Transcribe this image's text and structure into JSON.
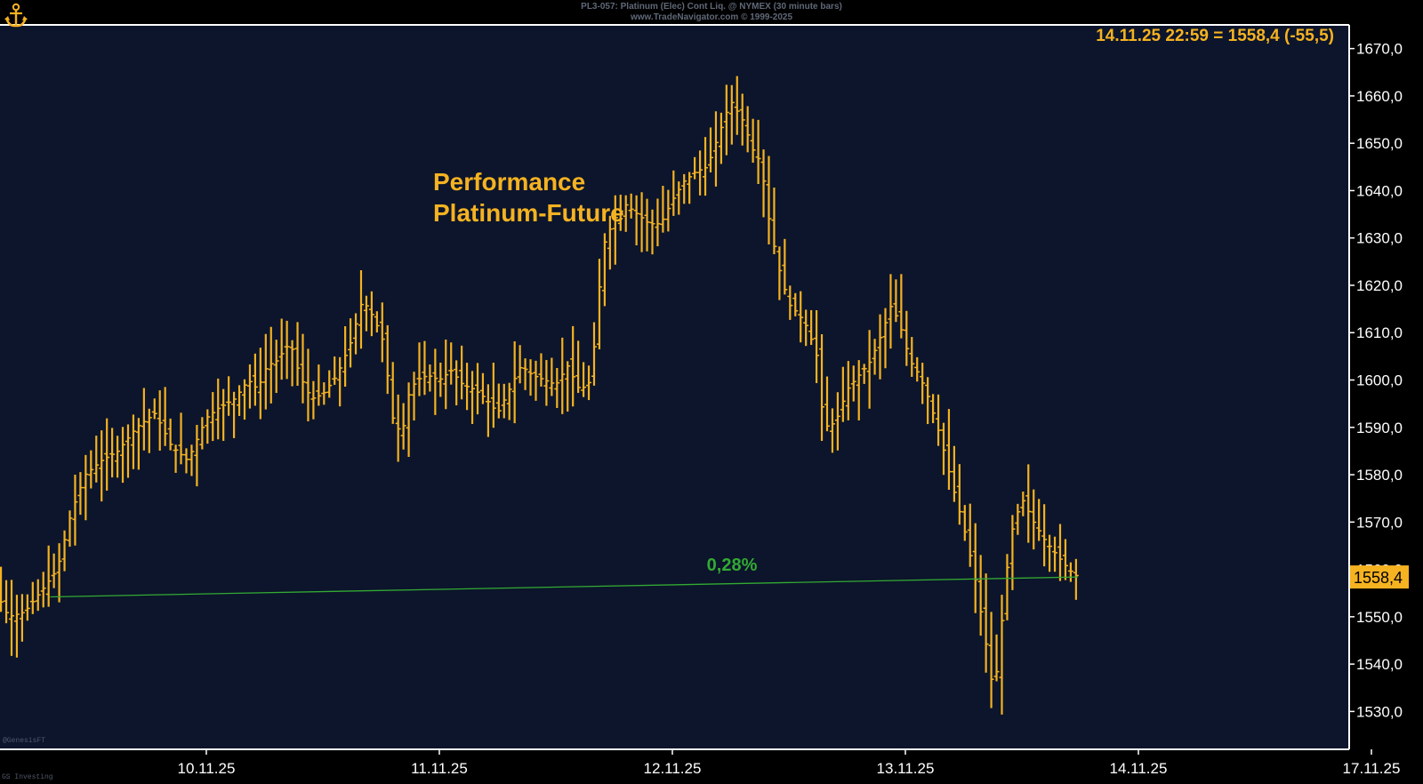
{
  "header": {
    "line1": "PL3-057: Platinum (Elec) Cont Liq. @ NYMEX (30 minute bars)",
    "line2": "www.TradeNavigator.com © 1999-2025"
  },
  "last_readout": "14.11.25 22:59 = 1558,4 (-55,5)",
  "price_label": "1558,4",
  "performance_title": [
    "Performance",
    "Platinum-Future"
  ],
  "trend": {
    "label": "0,28%",
    "color": "#33aa33"
  },
  "colors": {
    "background": "#0c152b",
    "bars": "#f5b221",
    "axis": "#ffffff",
    "trend": "#33aa33"
  },
  "watermark": "@GenesisFT",
  "source_tag": "GS Investing",
  "logo_icon": "ship-anchor-icon",
  "chart_data": {
    "type": "ohlc",
    "bar_interval": "30 minute",
    "x_tick_labels": [
      "10.11.25",
      "11.11.25",
      "12.11.25",
      "13.11.25",
      "14.11.25",
      "17.11.25"
    ],
    "ylim": [
      1522,
      1675
    ],
    "y_ticks": [
      1530,
      1540,
      1550,
      1560,
      1570,
      1580,
      1590,
      1600,
      1610,
      1620,
      1630,
      1640,
      1650,
      1660,
      1670
    ],
    "y_tick_labels": [
      "1530,0",
      "1540,0",
      "1550,0",
      "1560,0",
      "1570,0",
      "1580,0",
      "1590,0",
      "1600,0",
      "1610,0",
      "1620,0",
      "1630,0",
      "1640,0",
      "1650,0",
      "1660,0",
      "1670,0"
    ],
    "close_path": [
      [
        0.0,
        1560
      ],
      [
        0.05,
        1563
      ],
      [
        0.1,
        1555
      ],
      [
        0.15,
        1550
      ],
      [
        0.22,
        1551
      ],
      [
        0.3,
        1556
      ],
      [
        0.36,
        1560
      ],
      [
        0.42,
        1572
      ],
      [
        0.48,
        1580
      ],
      [
        0.55,
        1583
      ],
      [
        0.62,
        1585
      ],
      [
        0.7,
        1590
      ],
      [
        0.78,
        1593
      ],
      [
        0.85,
        1586
      ],
      [
        0.92,
        1583
      ],
      [
        1.0,
        1592
      ],
      [
        1.05,
        1594
      ],
      [
        1.12,
        1596
      ],
      [
        1.18,
        1600
      ],
      [
        1.22,
        1598
      ],
      [
        1.26,
        1603
      ],
      [
        1.3,
        1604
      ],
      [
        1.36,
        1608
      ],
      [
        1.4,
        1601
      ],
      [
        1.45,
        1596
      ],
      [
        1.5,
        1597
      ],
      [
        1.56,
        1601
      ],
      [
        1.62,
        1608
      ],
      [
        1.67,
        1617
      ],
      [
        1.72,
        1613
      ],
      [
        1.76,
        1608
      ],
      [
        1.8,
        1592
      ],
      [
        1.84,
        1588
      ],
      [
        1.86,
        1596
      ],
      [
        1.9,
        1600
      ],
      [
        1.95,
        1601
      ],
      [
        2.0,
        1600
      ],
      [
        2.05,
        1602
      ],
      [
        2.1,
        1599
      ],
      [
        2.15,
        1598
      ],
      [
        2.2,
        1596
      ],
      [
        2.25,
        1593
      ],
      [
        2.3,
        1598
      ],
      [
        2.35,
        1603
      ],
      [
        2.4,
        1601
      ],
      [
        2.45,
        1600
      ],
      [
        2.5,
        1599
      ],
      [
        2.55,
        1603
      ],
      [
        2.6,
        1598
      ],
      [
        2.64,
        1599
      ],
      [
        2.67,
        1609
      ],
      [
        2.7,
        1628
      ],
      [
        2.75,
        1634
      ],
      [
        2.8,
        1637
      ],
      [
        2.85,
        1635
      ],
      [
        2.9,
        1633
      ],
      [
        2.95,
        1633
      ],
      [
        3.0,
        1638
      ],
      [
        3.05,
        1642
      ],
      [
        3.1,
        1644
      ],
      [
        3.15,
        1645
      ],
      [
        3.2,
        1652
      ],
      [
        3.25,
        1659
      ],
      [
        3.3,
        1655
      ],
      [
        3.35,
        1648
      ],
      [
        3.38,
        1646
      ],
      [
        3.42,
        1632
      ],
      [
        3.46,
        1623
      ],
      [
        3.5,
        1616
      ],
      [
        3.54,
        1614
      ],
      [
        3.58,
        1611
      ],
      [
        3.62,
        1605
      ],
      [
        3.65,
        1590
      ],
      [
        3.7,
        1591
      ],
      [
        3.75,
        1598
      ],
      [
        3.8,
        1601
      ],
      [
        3.85,
        1604
      ],
      [
        3.9,
        1610
      ],
      [
        3.94,
        1616
      ],
      [
        3.98,
        1611
      ],
      [
        4.02,
        1604
      ],
      [
        4.06,
        1601
      ],
      [
        4.1,
        1596
      ],
      [
        4.15,
        1588
      ],
      [
        4.2,
        1578
      ],
      [
        4.25,
        1569
      ],
      [
        4.3,
        1558
      ],
      [
        4.35,
        1543
      ],
      [
        4.38,
        1533
      ],
      [
        4.42,
        1552
      ],
      [
        4.45,
        1567
      ],
      [
        4.5,
        1575
      ],
      [
        4.55,
        1570
      ],
      [
        4.6,
        1566
      ],
      [
        4.65,
        1563
      ],
      [
        4.7,
        1560
      ],
      [
        4.74,
        1558.4
      ]
    ],
    "trendline": {
      "x": [
        0.33,
        4.74
      ],
      "y": [
        1554.2,
        1558.4
      ],
      "label": "0,28%"
    },
    "last_value": 1558.4,
    "change": -55.5
  }
}
